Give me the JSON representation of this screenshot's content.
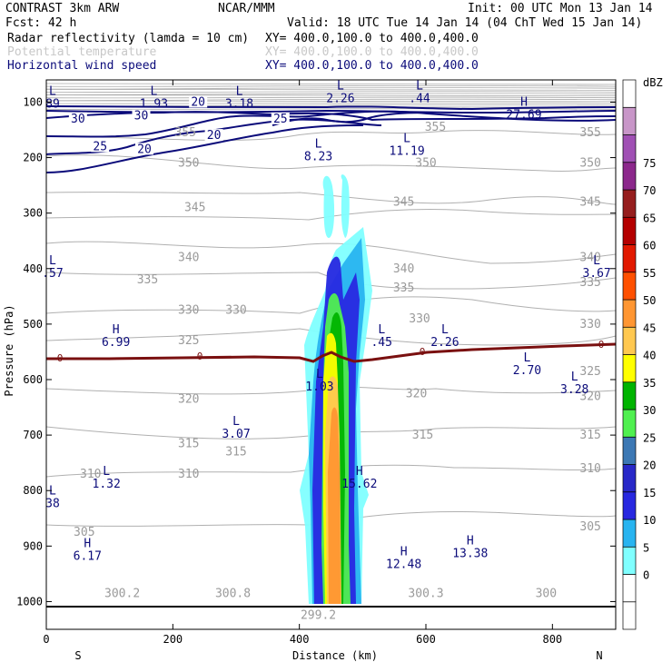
{
  "header": {
    "model": "CONTRAST  3km ARW",
    "org": "NCAR/MMM",
    "init": "Init: 00 UTC Mon 13 Jan 14",
    "fcst": "Fcst:   42 h",
    "valid": "Valid: 18 UTC Tue 14 Jan 14 (04 ChT Wed 15 Jan 14)",
    "fields": [
      {
        "name": "Radar reflectivity (lamda = 10 cm)",
        "xy": "XY= 400.0,100.0 to 400.0,400.0",
        "color": "#000000"
      },
      {
        "name": "Potential temperature",
        "xy": "XY= 400.0,100.0 to 400.0,400.0",
        "color": "#c8c8c8"
      },
      {
        "name": "Horizontal wind speed",
        "xy": "XY= 400.0,100.0 to 400.0,400.0",
        "color": "#0b0b7a"
      }
    ]
  },
  "chart_data": {
    "type": "contour",
    "xlabel": "Distance (km)",
    "ylabel": "Pressure (hPa)",
    "xlim": [
      0,
      900
    ],
    "ylim": [
      1050,
      60
    ],
    "x_ticks": [
      "0",
      "200",
      "400",
      "600",
      "800"
    ],
    "x_tick_values": [
      0,
      200,
      400,
      600,
      800
    ],
    "y_ticks": [
      "100",
      "200",
      "300",
      "400",
      "500",
      "600",
      "700",
      "800",
      "900",
      "1000"
    ],
    "y_tick_values": [
      100,
      200,
      300,
      400,
      500,
      600,
      700,
      800,
      900,
      1000
    ],
    "direction_labels": {
      "left": "S",
      "right": "N"
    },
    "colorbar": {
      "unit": "dBZ",
      "levels": [
        0,
        5,
        10,
        15,
        20,
        25,
        30,
        35,
        40,
        45,
        50,
        55,
        60,
        65,
        70,
        75
      ],
      "labels": [
        "0",
        "5",
        "10",
        "15",
        "20",
        "25",
        "30",
        "35",
        "40",
        "45",
        "50",
        "55",
        "60",
        "65",
        "70",
        "75"
      ],
      "colors": [
        "#ffffff",
        "#ffffff",
        "#80ffff",
        "#28b4f0",
        "#2828e0",
        "#2828c8",
        "#3c78b4",
        "#50f050",
        "#00b400",
        "#ffff00",
        "#ffc850",
        "#ff9632",
        "#ff5000",
        "#e11900",
        "#b40000",
        "#961e1e",
        "#8c288c",
        "#a050b4",
        "#c896c8",
        "#ffffff"
      ]
    },
    "theta_labels": [
      {
        "text": "355",
        "x": 615,
        "p": 145
      },
      {
        "text": "355",
        "x": 220,
        "p": 155
      },
      {
        "text": "355",
        "x": 860,
        "p": 155
      },
      {
        "text": "350",
        "x": 225,
        "p": 210
      },
      {
        "text": "350",
        "x": 600,
        "p": 210
      },
      {
        "text": "350",
        "x": 860,
        "p": 210
      },
      {
        "text": "345",
        "x": 235,
        "p": 290
      },
      {
        "text": "345",
        "x": 565,
        "p": 280
      },
      {
        "text": "345",
        "x": 860,
        "p": 280
      },
      {
        "text": "340",
        "x": 225,
        "p": 380
      },
      {
        "text": "340",
        "x": 565,
        "p": 400
      },
      {
        "text": "340",
        "x": 860,
        "p": 380
      },
      {
        "text": "335",
        "x": 160,
        "p": 420
      },
      {
        "text": "335",
        "x": 565,
        "p": 435
      },
      {
        "text": "335",
        "x": 860,
        "p": 425
      },
      {
        "text": "330",
        "x": 225,
        "p": 475
      },
      {
        "text": "330",
        "x": 300,
        "p": 475
      },
      {
        "text": "330",
        "x": 590,
        "p": 490
      },
      {
        "text": "330",
        "x": 860,
        "p": 500
      },
      {
        "text": "325",
        "x": 225,
        "p": 530
      },
      {
        "text": "325",
        "x": 860,
        "p": 585
      },
      {
        "text": "320",
        "x": 225,
        "p": 635
      },
      {
        "text": "320",
        "x": 585,
        "p": 625
      },
      {
        "text": "320",
        "x": 860,
        "p": 630
      },
      {
        "text": "315",
        "x": 225,
        "p": 715
      },
      {
        "text": "315",
        "x": 300,
        "p": 730
      },
      {
        "text": "315",
        "x": 595,
        "p": 700
      },
      {
        "text": "315",
        "x": 860,
        "p": 700
      },
      {
        "text": "310",
        "x": 70,
        "p": 770
      },
      {
        "text": "310",
        "x": 225,
        "p": 770
      },
      {
        "text": "310",
        "x": 860,
        "p": 760
      },
      {
        "text": "305",
        "x": 60,
        "p": 875
      },
      {
        "text": "305",
        "x": 860,
        "p": 865
      },
      {
        "text": "300.2",
        "x": 120,
        "p": 985
      },
      {
        "text": "300.8",
        "x": 295,
        "p": 985
      },
      {
        "text": "300.3",
        "x": 600,
        "p": 985
      },
      {
        "text": "300",
        "x": 790,
        "p": 985
      },
      {
        "text": "299.2",
        "x": 430,
        "p": 1025
      }
    ],
    "speed_labels": [
      {
        "text": "30",
        "x": 50,
        "p": 130
      },
      {
        "text": "25",
        "x": 85,
        "p": 180
      },
      {
        "text": "20",
        "x": 155,
        "p": 185
      },
      {
        "text": "20",
        "x": 240,
        "p": 100
      },
      {
        "text": "20",
        "x": 265,
        "p": 160
      },
      {
        "text": "25",
        "x": 370,
        "p": 130
      },
      {
        "text": "30",
        "x": 150,
        "p": 125
      }
    ],
    "highs_lows": [
      {
        "kind": "L",
        "value": "89",
        "x": 10,
        "p": 100
      },
      {
        "kind": "L",
        "value": "1.93",
        "x": 170,
        "p": 100
      },
      {
        "kind": "L",
        "value": "3.18",
        "x": 305,
        "p": 100
      },
      {
        "kind": "L",
        "value": "2.26",
        "x": 465,
        "p": 90
      },
      {
        "kind": "L",
        "value": ".44",
        "x": 590,
        "p": 90
      },
      {
        "kind": "H",
        "value": "27.69",
        "x": 755,
        "p": 120
      },
      {
        "kind": "L",
        "value": "8.23",
        "x": 430,
        "p": 195
      },
      {
        "kind": "L",
        "value": "11.19",
        "x": 570,
        "p": 185
      },
      {
        "kind": "L",
        "value": ".57",
        "x": 10,
        "p": 405
      },
      {
        "kind": "L",
        "value": "3.67",
        "x": 870,
        "p": 405
      },
      {
        "kind": "H",
        "value": "6.99",
        "x": 110,
        "p": 530
      },
      {
        "kind": "L",
        "value": ".45",
        "x": 530,
        "p": 530
      },
      {
        "kind": "L",
        "value": "2.26",
        "x": 630,
        "p": 530
      },
      {
        "kind": "L",
        "value": "2.70",
        "x": 760,
        "p": 580
      },
      {
        "kind": "L",
        "value": "3.28",
        "x": 835,
        "p": 615
      },
      {
        "kind": "L",
        "value": "1.03",
        "x": 432,
        "p": 610
      },
      {
        "kind": "L",
        "value": "3.07",
        "x": 300,
        "p": 695
      },
      {
        "kind": "L",
        "value": "1.32",
        "x": 95,
        "p": 785
      },
      {
        "kind": "H",
        "value": "15.62",
        "x": 495,
        "p": 785
      },
      {
        "kind": "L",
        "value": "38",
        "x": 10,
        "p": 820
      },
      {
        "kind": "H",
        "value": "6.17",
        "x": 65,
        "p": 915
      },
      {
        "kind": "H",
        "value": "12.48",
        "x": 565,
        "p": 930
      },
      {
        "kind": "H",
        "value": "13.38",
        "x": 670,
        "p": 910
      }
    ],
    "zero_contour_labels": [
      "0",
      "0",
      "0",
      "0"
    ]
  }
}
